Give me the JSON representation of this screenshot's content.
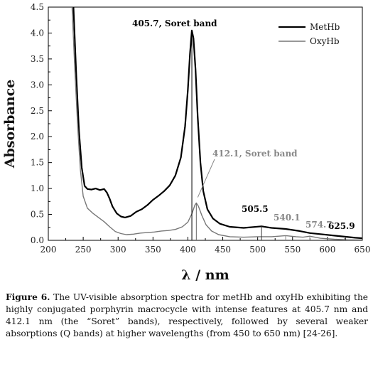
{
  "chart_data": {
    "type": "line",
    "xlabel": "λ / nm",
    "ylabel": "Absorbance",
    "xlim": [
      200,
      650
    ],
    "ylim": [
      0,
      4.5
    ],
    "x_ticks": [
      "200",
      "250",
      "300",
      "350",
      "400",
      "450",
      "500",
      "550",
      "600",
      "650"
    ],
    "y_ticks": [
      "0.0",
      "0.5",
      "1.0",
      "1.5",
      "2.0",
      "2.5",
      "3.0",
      "3.5",
      "4.0",
      "4.5"
    ],
    "legend_position": "top-right",
    "series": [
      {
        "name": "MetHb",
        "color": "#000000",
        "points": [
          [
            236,
            4.5
          ],
          [
            240,
            3.2
          ],
          [
            244,
            2.1
          ],
          [
            248,
            1.4
          ],
          [
            252,
            1.05
          ],
          [
            256,
            0.99
          ],
          [
            262,
            0.98
          ],
          [
            268,
            1.0
          ],
          [
            274,
            0.97
          ],
          [
            280,
            0.99
          ],
          [
            284,
            0.92
          ],
          [
            288,
            0.8
          ],
          [
            292,
            0.65
          ],
          [
            298,
            0.52
          ],
          [
            304,
            0.46
          ],
          [
            310,
            0.44
          ],
          [
            318,
            0.47
          ],
          [
            326,
            0.55
          ],
          [
            334,
            0.6
          ],
          [
            342,
            0.68
          ],
          [
            350,
            0.78
          ],
          [
            358,
            0.86
          ],
          [
            366,
            0.95
          ],
          [
            374,
            1.06
          ],
          [
            382,
            1.25
          ],
          [
            390,
            1.6
          ],
          [
            396,
            2.2
          ],
          [
            400,
            2.9
          ],
          [
            403,
            3.6
          ],
          [
            405.7,
            4.05
          ],
          [
            408,
            3.9
          ],
          [
            411,
            3.3
          ],
          [
            414,
            2.4
          ],
          [
            418,
            1.5
          ],
          [
            422,
            0.95
          ],
          [
            428,
            0.6
          ],
          [
            436,
            0.42
          ],
          [
            446,
            0.32
          ],
          [
            460,
            0.26
          ],
          [
            480,
            0.24
          ],
          [
            505.5,
            0.27
          ],
          [
            520,
            0.24
          ],
          [
            540,
            0.22
          ],
          [
            560,
            0.18
          ],
          [
            575,
            0.14
          ],
          [
            590,
            0.12
          ],
          [
            610,
            0.09
          ],
          [
            625,
            0.07
          ],
          [
            640,
            0.05
          ],
          [
            650,
            0.04
          ]
        ]
      },
      {
        "name": "OxyHb",
        "color": "#777777",
        "points": [
          [
            234,
            4.5
          ],
          [
            238,
            3.3
          ],
          [
            242,
            2.2
          ],
          [
            246,
            1.35
          ],
          [
            250,
            0.85
          ],
          [
            256,
            0.62
          ],
          [
            264,
            0.52
          ],
          [
            272,
            0.44
          ],
          [
            280,
            0.36
          ],
          [
            288,
            0.26
          ],
          [
            296,
            0.17
          ],
          [
            304,
            0.13
          ],
          [
            312,
            0.11
          ],
          [
            322,
            0.12
          ],
          [
            332,
            0.14
          ],
          [
            342,
            0.15
          ],
          [
            352,
            0.16
          ],
          [
            362,
            0.18
          ],
          [
            372,
            0.19
          ],
          [
            382,
            0.21
          ],
          [
            392,
            0.26
          ],
          [
            400,
            0.35
          ],
          [
            406,
            0.52
          ],
          [
            410,
            0.68
          ],
          [
            412.1,
            0.72
          ],
          [
            415,
            0.66
          ],
          [
            420,
            0.48
          ],
          [
            426,
            0.3
          ],
          [
            434,
            0.18
          ],
          [
            444,
            0.11
          ],
          [
            460,
            0.07
          ],
          [
            480,
            0.06
          ],
          [
            500,
            0.07
          ],
          [
            520,
            0.07
          ],
          [
            540.1,
            0.09
          ],
          [
            555,
            0.07
          ],
          [
            565,
            0.06
          ],
          [
            574.7,
            0.08
          ],
          [
            590,
            0.04
          ],
          [
            610,
            0.02
          ],
          [
            630,
            0.01
          ],
          [
            650,
            0.01
          ]
        ]
      }
    ],
    "annotations": [
      {
        "text": "405.7, Soret band",
        "color": "#000000"
      },
      {
        "text": "412.1, Soret band",
        "color": "#888888"
      },
      {
        "text": "505.5",
        "color": "#000000"
      },
      {
        "text": "540.1",
        "color": "#888888"
      },
      {
        "text": "574.7",
        "color": "#888888"
      },
      {
        "text": "625.9",
        "color": "#000000"
      }
    ]
  },
  "caption": {
    "label": "Figure 6.",
    "text": " The UV-visible absorption spectra for metHb and oxyHb exhibiting the highly conjugated porphyrin macrocycle with intense features at 405.7 nm and 412.1 nm (the “Soret” bands), respectively, followed by several weaker absorptions (Q bands) at higher wavelengths (from 450 to 650 nm) [24-26]."
  }
}
